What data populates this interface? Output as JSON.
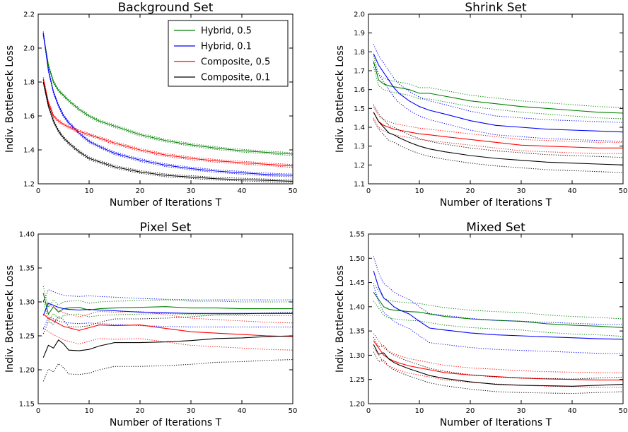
{
  "chart_data": [
    {
      "type": "line",
      "title": "Background Set",
      "xlabel": "Number of Iterations T",
      "ylabel": "Indiv. Bottleneck Loss",
      "xlim": [
        0,
        50
      ],
      "ylim": [
        1.2,
        2.2
      ],
      "xticks": [
        0,
        10,
        20,
        30,
        40,
        50
      ],
      "yticks": [
        1.2,
        1.4,
        1.6,
        1.8,
        2.0,
        2.2
      ],
      "ytick_labels": [
        "1.2",
        "1.4",
        "1.6",
        "1.8",
        "2.0",
        "2.2"
      ],
      "legend_position": "top-right",
      "series": [
        {
          "name": "Hybrid, 0.5",
          "color": "#008000",
          "band": 0.008,
          "x": [
            1,
            2,
            3,
            4,
            5,
            6,
            8,
            10,
            12,
            15,
            20,
            25,
            30,
            35,
            40,
            45,
            50
          ],
          "y": [
            2.08,
            1.9,
            1.8,
            1.75,
            1.72,
            1.69,
            1.64,
            1.6,
            1.57,
            1.54,
            1.49,
            1.455,
            1.43,
            1.41,
            1.395,
            1.385,
            1.375
          ]
        },
        {
          "name": "Hybrid, 0.1",
          "color": "#0000ff",
          "band": 0.008,
          "x": [
            1,
            2,
            3,
            4,
            5,
            6,
            8,
            10,
            12,
            15,
            20,
            25,
            30,
            35,
            40,
            45,
            50
          ],
          "y": [
            2.09,
            1.87,
            1.74,
            1.66,
            1.6,
            1.56,
            1.5,
            1.45,
            1.42,
            1.38,
            1.34,
            1.31,
            1.29,
            1.275,
            1.265,
            1.255,
            1.25
          ]
        },
        {
          "name": "Composite, 0.5",
          "color": "#ff0000",
          "band": 0.008,
          "x": [
            1,
            2,
            3,
            4,
            5,
            6,
            8,
            10,
            12,
            15,
            20,
            25,
            30,
            35,
            40,
            45,
            50
          ],
          "y": [
            1.82,
            1.68,
            1.6,
            1.57,
            1.55,
            1.535,
            1.51,
            1.49,
            1.47,
            1.44,
            1.4,
            1.37,
            1.35,
            1.335,
            1.325,
            1.315,
            1.305
          ]
        },
        {
          "name": "Composite, 0.1",
          "color": "#000000",
          "band": 0.008,
          "x": [
            1,
            2,
            3,
            4,
            5,
            6,
            8,
            10,
            12,
            15,
            20,
            25,
            30,
            35,
            40,
            45,
            50
          ],
          "y": [
            1.8,
            1.66,
            1.57,
            1.51,
            1.47,
            1.44,
            1.39,
            1.35,
            1.33,
            1.3,
            1.27,
            1.25,
            1.24,
            1.23,
            1.225,
            1.22,
            1.215
          ]
        }
      ]
    },
    {
      "type": "line",
      "title": "Shrink Set",
      "xlabel": "Number of Iterations T",
      "ylabel": "Indiv. Bottleneck Loss",
      "xlim": [
        0,
        50
      ],
      "ylim": [
        1.1,
        2.0
      ],
      "xticks": [
        0,
        10,
        20,
        30,
        40,
        50
      ],
      "yticks": [
        1.1,
        1.2,
        1.3,
        1.4,
        1.5,
        1.6,
        1.7,
        1.8,
        1.9,
        2.0
      ],
      "ytick_labels": [
        "1.1",
        "1.2",
        "1.3",
        "1.4",
        "1.5",
        "1.6",
        "1.7",
        "1.8",
        "1.9",
        "2.0"
      ],
      "series": [
        {
          "name": "Hybrid, 0.5",
          "color": "#008000",
          "band": 0.03,
          "x": [
            1,
            2,
            3,
            4,
            5,
            6,
            8,
            10,
            12,
            15,
            20,
            25,
            30,
            35,
            40,
            45,
            50
          ],
          "y": [
            1.75,
            1.65,
            1.63,
            1.62,
            1.615,
            1.61,
            1.6,
            1.58,
            1.58,
            1.565,
            1.54,
            1.525,
            1.51,
            1.5,
            1.49,
            1.48,
            1.475
          ]
        },
        {
          "name": "Hybrid, 0.1",
          "color": "#0000ff",
          "band": 0.05,
          "x": [
            1,
            2,
            3,
            4,
            5,
            6,
            8,
            10,
            12,
            15,
            20,
            25,
            30,
            35,
            40,
            45,
            50
          ],
          "y": [
            1.79,
            1.73,
            1.69,
            1.65,
            1.61,
            1.58,
            1.54,
            1.51,
            1.49,
            1.47,
            1.435,
            1.41,
            1.4,
            1.39,
            1.385,
            1.38,
            1.375
          ]
        },
        {
          "name": "Composite, 0.5",
          "color": "#ff0000",
          "band": 0.03,
          "x": [
            1,
            2,
            3,
            4,
            5,
            6,
            8,
            10,
            12,
            15,
            20,
            25,
            30,
            35,
            40,
            45,
            50
          ],
          "y": [
            1.48,
            1.43,
            1.41,
            1.4,
            1.39,
            1.385,
            1.375,
            1.365,
            1.36,
            1.35,
            1.335,
            1.32,
            1.305,
            1.3,
            1.295,
            1.29,
            1.29
          ]
        },
        {
          "name": "Composite, 0.1",
          "color": "#000000",
          "band": 0.04,
          "x": [
            1,
            2,
            3,
            4,
            5,
            6,
            8,
            10,
            12,
            15,
            20,
            25,
            30,
            35,
            40,
            45,
            50
          ],
          "y": [
            1.48,
            1.43,
            1.4,
            1.37,
            1.36,
            1.345,
            1.32,
            1.3,
            1.285,
            1.27,
            1.25,
            1.235,
            1.225,
            1.215,
            1.21,
            1.205,
            1.2
          ]
        }
      ]
    },
    {
      "type": "line",
      "title": "Pixel Set",
      "xlabel": "Number of Iterations T",
      "ylabel": "Indiv. Bottleneck Loss",
      "xlim": [
        0,
        50
      ],
      "ylim": [
        1.15,
        1.4
      ],
      "xticks": [
        0,
        10,
        20,
        30,
        40,
        50
      ],
      "yticks": [
        1.15,
        1.2,
        1.25,
        1.3,
        1.35,
        1.4
      ],
      "ytick_labels": [
        "1.15",
        "1.20",
        "1.25",
        "1.30",
        "1.35",
        "1.40"
      ],
      "series": [
        {
          "name": "Hybrid, 0.5",
          "color": "#008000",
          "band": 0.01,
          "x": [
            1,
            2,
            3,
            4,
            5,
            6,
            8,
            10,
            12,
            15,
            20,
            25,
            30,
            35,
            40,
            45,
            50
          ],
          "y": [
            1.313,
            1.282,
            1.293,
            1.285,
            1.29,
            1.291,
            1.292,
            1.288,
            1.29,
            1.291,
            1.292,
            1.293,
            1.291,
            1.291,
            1.29,
            1.29,
            1.29
          ]
        },
        {
          "name": "Hybrid, 0.1",
          "color": "#0000ff",
          "band": 0.02,
          "x": [
            1,
            2,
            3,
            4,
            5,
            6,
            8,
            10,
            12,
            15,
            20,
            25,
            30,
            35,
            40,
            45,
            50
          ],
          "y": [
            1.28,
            1.298,
            1.295,
            1.292,
            1.29,
            1.289,
            1.288,
            1.289,
            1.288,
            1.287,
            1.285,
            1.284,
            1.283,
            1.283,
            1.283,
            1.283,
            1.283
          ]
        },
        {
          "name": "Composite, 0.5",
          "color": "#ff0000",
          "band": 0.02,
          "x": [
            1,
            2,
            3,
            4,
            5,
            6,
            8,
            10,
            12,
            15,
            20,
            25,
            30,
            35,
            40,
            45,
            50
          ],
          "y": [
            1.282,
            1.276,
            1.272,
            1.268,
            1.264,
            1.262,
            1.258,
            1.262,
            1.266,
            1.265,
            1.266,
            1.261,
            1.256,
            1.254,
            1.252,
            1.25,
            1.249
          ]
        },
        {
          "name": "Composite, 0.1",
          "color": "#000000",
          "band": 0.035,
          "x": [
            1,
            2,
            3,
            4,
            5,
            6,
            8,
            10,
            12,
            15,
            20,
            25,
            30,
            35,
            40,
            45,
            50
          ],
          "y": [
            1.218,
            1.236,
            1.232,
            1.244,
            1.238,
            1.229,
            1.228,
            1.23,
            1.235,
            1.24,
            1.24,
            1.241,
            1.243,
            1.246,
            1.247,
            1.249,
            1.25
          ]
        }
      ]
    },
    {
      "type": "line",
      "title": "Mixed Set",
      "xlabel": "Number of Iterations T",
      "ylabel": "Indiv. Bottleneck Loss",
      "xlim": [
        0,
        50
      ],
      "ylim": [
        1.2,
        1.55
      ],
      "xticks": [
        0,
        10,
        20,
        30,
        40,
        50
      ],
      "yticks": [
        1.2,
        1.25,
        1.3,
        1.35,
        1.4,
        1.45,
        1.5,
        1.55
      ],
      "ytick_labels": [
        "1.20",
        "1.25",
        "1.30",
        "1.35",
        "1.40",
        "1.45",
        "1.50",
        "1.55"
      ],
      "series": [
        {
          "name": "Hybrid, 0.5",
          "color": "#008000",
          "band": 0.018,
          "x": [
            1,
            2,
            3,
            4,
            5,
            6,
            8,
            10,
            12,
            15,
            20,
            25,
            30,
            35,
            40,
            45,
            50
          ],
          "y": [
            1.43,
            1.415,
            1.4,
            1.395,
            1.393,
            1.392,
            1.39,
            1.389,
            1.385,
            1.38,
            1.375,
            1.372,
            1.37,
            1.365,
            1.362,
            1.36,
            1.357
          ]
        },
        {
          "name": "Hybrid, 0.1",
          "color": "#0000ff",
          "band": 0.03,
          "x": [
            1,
            2,
            3,
            4,
            5,
            6,
            8,
            10,
            12,
            15,
            20,
            25,
            30,
            35,
            40,
            45,
            50
          ],
          "y": [
            1.474,
            1.44,
            1.418,
            1.41,
            1.4,
            1.394,
            1.385,
            1.37,
            1.356,
            1.352,
            1.346,
            1.342,
            1.34,
            1.338,
            1.336,
            1.334,
            1.333
          ]
        },
        {
          "name": "Composite, 0.5",
          "color": "#ff0000",
          "band": 0.015,
          "x": [
            1,
            2,
            3,
            4,
            5,
            6,
            8,
            10,
            12,
            15,
            20,
            25,
            30,
            35,
            40,
            45,
            50
          ],
          "y": [
            1.33,
            1.315,
            1.3,
            1.293,
            1.288,
            1.284,
            1.278,
            1.274,
            1.27,
            1.264,
            1.259,
            1.256,
            1.253,
            1.251,
            1.25,
            1.249,
            1.249
          ]
        },
        {
          "name": "Composite, 0.1",
          "color": "#000000",
          "band": 0.015,
          "x": [
            1,
            2,
            3,
            4,
            5,
            6,
            8,
            10,
            12,
            15,
            20,
            25,
            30,
            35,
            40,
            45,
            50
          ],
          "y": [
            1.322,
            1.302,
            1.305,
            1.292,
            1.285,
            1.28,
            1.272,
            1.265,
            1.258,
            1.252,
            1.245,
            1.24,
            1.238,
            1.237,
            1.236,
            1.238,
            1.24
          ]
        }
      ]
    }
  ]
}
